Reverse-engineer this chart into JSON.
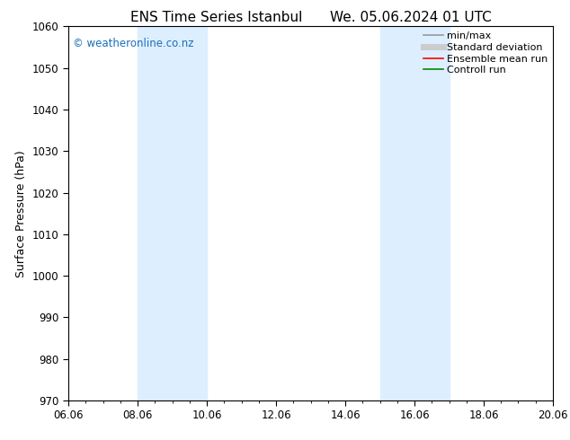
{
  "title_left": "ENS Time Series Istanbul",
  "title_right": "We. 05.06.2024 01 UTC",
  "ylabel": "Surface Pressure (hPa)",
  "ylim": [
    970,
    1060
  ],
  "yticks": [
    970,
    980,
    990,
    1000,
    1010,
    1020,
    1030,
    1040,
    1050,
    1060
  ],
  "xlim_start": 0,
  "xlim_end": 14,
  "xtick_labels": [
    "06.06",
    "08.06",
    "10.06",
    "12.06",
    "14.06",
    "16.06",
    "18.06",
    "20.06"
  ],
  "xtick_positions": [
    0,
    2,
    4,
    6,
    8,
    10,
    12,
    14
  ],
  "shaded_bands": [
    {
      "x_start": 2.0,
      "x_end": 4.0
    },
    {
      "x_start": 9.0,
      "x_end": 11.0
    }
  ],
  "shaded_color": "#ddeeff",
  "background_color": "#ffffff",
  "watermark_text": "© weatheronline.co.nz",
  "watermark_color": "#1a6fbd",
  "legend_items": [
    {
      "label": "min/max",
      "color": "#999999",
      "lw": 1.2
    },
    {
      "label": "Standard deviation",
      "color": "#cccccc",
      "lw": 5
    },
    {
      "label": "Ensemble mean run",
      "color": "#ff0000",
      "lw": 1.2
    },
    {
      "label": "Controll run",
      "color": "#008800",
      "lw": 1.2
    }
  ],
  "title_fontsize": 11,
  "axis_fontsize": 9,
  "tick_fontsize": 8.5,
  "legend_fontsize": 8
}
